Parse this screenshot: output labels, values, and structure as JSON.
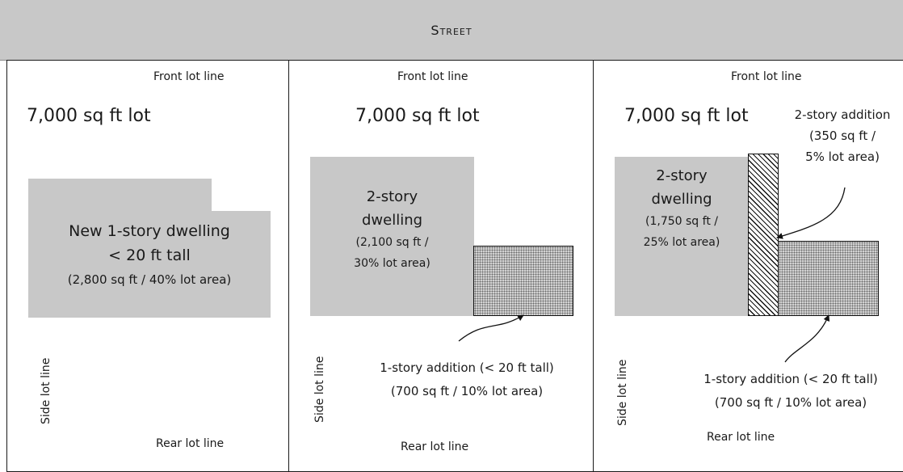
{
  "street": "Street",
  "lots": [
    {
      "front": "Front lot line",
      "rear": "Rear lot line",
      "side": "Side lot line",
      "area": "7,000 sq ft lot",
      "dwelling": [
        "New 1-story dwelling",
        "< 20 ft tall",
        "(2,800 sq ft / 40% lot area)"
      ]
    },
    {
      "front": "Front lot line",
      "rear": "Rear lot line",
      "side": "Side lot line",
      "area": "7,000 sq ft lot",
      "dwelling": [
        "2-story",
        "dwelling",
        "(2,100 sq ft /",
        "30% lot area)"
      ],
      "addition": [
        "1-story addition (< 20 ft tall)",
        "(700 sq ft / 10% lot area)"
      ]
    },
    {
      "front": "Front lot line",
      "rear": "Rear lot line",
      "side": "Side lot line",
      "area": "7,000 sq ft lot",
      "dwelling": [
        "2-story",
        "dwelling",
        "(1,750 sq ft /",
        "25% lot area)"
      ],
      "addition_upper": [
        "2-story addition",
        "(350 sq ft /",
        "5% lot area)"
      ],
      "addition": [
        "1-story addition (< 20 ft tall)",
        "(700 sq ft / 10% lot area)"
      ]
    }
  ]
}
